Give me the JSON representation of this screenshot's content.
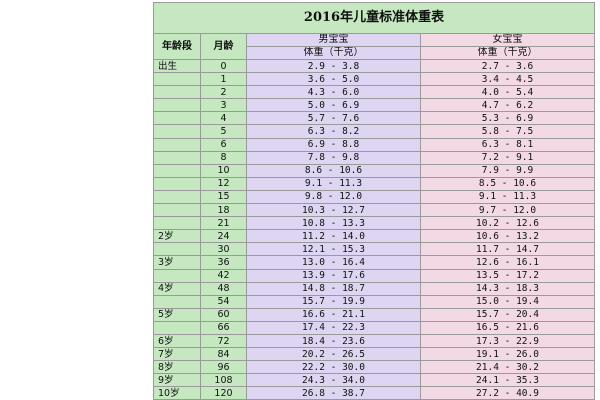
{
  "table": {
    "title": "2016年儿童标准体重表",
    "headers": {
      "age_group": "年龄段",
      "month": "月龄",
      "boy": "男宝宝",
      "girl": "女宝宝",
      "weight_unit": "体重（千克）"
    },
    "rows": [
      {
        "age": "出生",
        "month": "0",
        "boy": "2.9 - 3.8",
        "girl": "2.7 - 3.6"
      },
      {
        "age": "",
        "month": "1",
        "boy": "3.6 - 5.0",
        "girl": "3.4 - 4.5"
      },
      {
        "age": "",
        "month": "2",
        "boy": "4.3 - 6.0",
        "girl": "4.0 - 5.4"
      },
      {
        "age": "",
        "month": "3",
        "boy": "5.0 - 6.9",
        "girl": "4.7 - 6.2"
      },
      {
        "age": "",
        "month": "4",
        "boy": "5.7 - 7.6",
        "girl": "5.3 - 6.9"
      },
      {
        "age": "",
        "month": "5",
        "boy": "6.3 - 8.2",
        "girl": "5.8 - 7.5"
      },
      {
        "age": "",
        "month": "6",
        "boy": "6.9 - 8.8",
        "girl": "6.3 - 8.1"
      },
      {
        "age": "",
        "month": "8",
        "boy": "7.8 - 9.8",
        "girl": "7.2 - 9.1"
      },
      {
        "age": "",
        "month": "10",
        "boy": "8.6 - 10.6",
        "girl": "7.9 - 9.9"
      },
      {
        "age": "",
        "month": "12",
        "boy": "9.1 - 11.3",
        "girl": "8.5 - 10.6"
      },
      {
        "age": "",
        "month": "15",
        "boy": "9.8 - 12.0",
        "girl": "9.1 - 11.3"
      },
      {
        "age": "",
        "month": "18",
        "boy": "10.3 - 12.7",
        "girl": "9.7 - 12.0"
      },
      {
        "age": "",
        "month": "21",
        "boy": "10.8 - 13.3",
        "girl": "10.2 - 12.6"
      },
      {
        "age": "2岁",
        "month": "24",
        "boy": "11.2 - 14.0",
        "girl": "10.6 - 13.2"
      },
      {
        "age": "",
        "month": "30",
        "boy": "12.1 - 15.3",
        "girl": "11.7 - 14.7"
      },
      {
        "age": "3岁",
        "month": "36",
        "boy": "13.0 - 16.4",
        "girl": "12.6 - 16.1"
      },
      {
        "age": "",
        "month": "42",
        "boy": "13.9 - 17.6",
        "girl": "13.5 - 17.2"
      },
      {
        "age": "4岁",
        "month": "48",
        "boy": "14.8 - 18.7",
        "girl": "14.3 - 18.3"
      },
      {
        "age": "",
        "month": "54",
        "boy": "15.7 - 19.9",
        "girl": "15.0 - 19.4"
      },
      {
        "age": "5岁",
        "month": "60",
        "boy": "16.6 - 21.1",
        "girl": "15.7 - 20.4"
      },
      {
        "age": "",
        "month": "66",
        "boy": "17.4 - 22.3",
        "girl": "16.5 - 21.6"
      },
      {
        "age": "6岁",
        "month": "72",
        "boy": "18.4 - 23.6",
        "girl": "17.3 - 22.9"
      },
      {
        "age": "7岁",
        "month": "84",
        "boy": "20.2 - 26.5",
        "girl": "19.1 - 26.0"
      },
      {
        "age": "8岁",
        "month": "96",
        "boy": "22.2 - 30.0",
        "girl": "21.4 - 30.2"
      },
      {
        "age": "9岁",
        "month": "108",
        "boy": "24.3 - 34.0",
        "girl": "24.1 - 35.3"
      },
      {
        "age": "10岁",
        "month": "120",
        "boy": "26.8 - 38.7",
        "girl": "27.2 - 40.9"
      }
    ]
  },
  "colors": {
    "green": "#c5e8c1",
    "purple": "#ddd5f2",
    "pink": "#f2d9e4",
    "border": "#9a9a9a"
  }
}
